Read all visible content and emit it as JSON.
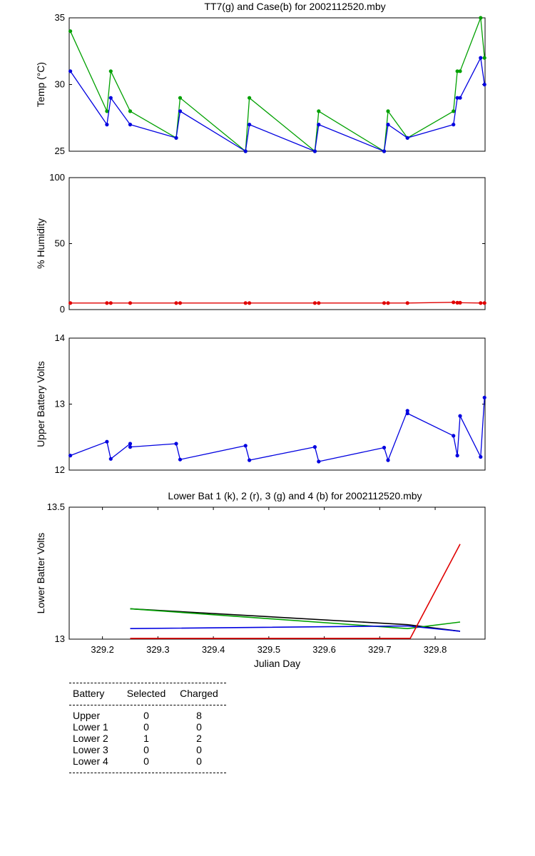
{
  "chart_data": [
    {
      "type": "line",
      "title": "TT7(g) and Case(b) for 2002112520.mby",
      "xlabel": "",
      "ylabel": "Temp  (°C)",
      "xlim": [
        329.14,
        329.89
      ],
      "ylim": [
        25,
        35
      ],
      "yticks": [
        25,
        30,
        35
      ],
      "grid": false,
      "series": [
        {
          "color": "#00a000",
          "x": [
            329.142,
            329.208,
            329.215,
            329.25,
            329.333,
            329.34,
            329.458,
            329.465,
            329.583,
            329.59,
            329.708,
            329.715,
            329.75,
            329.833,
            329.84,
            329.845,
            329.882,
            329.889
          ],
          "values": [
            34,
            28,
            31,
            28,
            26,
            29,
            25,
            29,
            25,
            28,
            25,
            28,
            26,
            28,
            31,
            31,
            35,
            32
          ]
        },
        {
          "color": "#0000e0",
          "x": [
            329.142,
            329.208,
            329.215,
            329.25,
            329.333,
            329.34,
            329.458,
            329.465,
            329.583,
            329.59,
            329.708,
            329.715,
            329.75,
            329.833,
            329.84,
            329.845,
            329.882,
            329.889
          ],
          "values": [
            31,
            27,
            29,
            27,
            26,
            28,
            25,
            27,
            25,
            27,
            25,
            27,
            26,
            27,
            29,
            29,
            32,
            30
          ]
        }
      ]
    },
    {
      "type": "line",
      "title": "",
      "xlabel": "",
      "ylabel": "% Humidity",
      "xlim": [
        329.14,
        329.89
      ],
      "ylim": [
        0,
        100
      ],
      "yticks": [
        0,
        50,
        100
      ],
      "grid": false,
      "series": [
        {
          "color": "#e00000",
          "x": [
            329.142,
            329.208,
            329.215,
            329.25,
            329.333,
            329.34,
            329.458,
            329.465,
            329.583,
            329.59,
            329.708,
            329.715,
            329.75,
            329.833,
            329.84,
            329.845,
            329.882,
            329.889
          ],
          "values": [
            5,
            5,
            5,
            5,
            5,
            5,
            5,
            5,
            5,
            5,
            5,
            5,
            5,
            5.5,
            5.2,
            5.2,
            5,
            5
          ]
        }
      ]
    },
    {
      "type": "line",
      "title": "",
      "xlabel": "",
      "ylabel": "Upper Battery Volts",
      "xlim": [
        329.14,
        329.89
      ],
      "ylim": [
        12,
        14
      ],
      "yticks": [
        12,
        13,
        14
      ],
      "grid": false,
      "series": [
        {
          "color": "#0000e0",
          "x": [
            329.142,
            329.208,
            329.215,
            329.25,
            329.25,
            329.333,
            329.34,
            329.458,
            329.465,
            329.583,
            329.59,
            329.708,
            329.715,
            329.75,
            329.75,
            329.833,
            329.84,
            329.845,
            329.882,
            329.889
          ],
          "values": [
            12.22,
            12.43,
            12.17,
            12.4,
            12.35,
            12.4,
            12.16,
            12.37,
            12.15,
            12.35,
            12.13,
            12.34,
            12.15,
            12.9,
            12.86,
            12.52,
            12.22,
            12.82,
            12.2,
            13.1
          ]
        }
      ]
    },
    {
      "type": "line",
      "title": "Lower Bat 1 (k), 2 (r), 3 (g) and 4 (b) for 2002112520.mby",
      "xlabel": "Julian Day",
      "ylabel": "Lower Batter Volts",
      "xlim": [
        329.14,
        329.89
      ],
      "ylim": [
        13,
        13.5
      ],
      "yticks": [
        13,
        13.5
      ],
      "xticks": [
        329.2,
        329.3,
        329.4,
        329.5,
        329.6,
        329.7,
        329.8
      ],
      "xticklabels": [
        "329.2",
        "329.3",
        "329.4",
        "329.5",
        "329.6",
        "329.7",
        "329.8"
      ],
      "grid": false,
      "series": [
        {
          "color": "#000000",
          "x": [
            329.25,
            329.75,
            329.845
          ],
          "values": [
            13.115,
            13.055,
            13.03
          ]
        },
        {
          "color": "#00a000",
          "x": [
            329.25,
            329.75,
            329.845
          ],
          "values": [
            13.115,
            13.04,
            13.065
          ]
        },
        {
          "color": "#0000e0",
          "x": [
            329.25,
            329.75,
            329.845
          ],
          "values": [
            13.04,
            13.05,
            13.03
          ]
        },
        {
          "color": "#e00000",
          "x": [
            329.25,
            329.755,
            329.845
          ],
          "values": [
            13.003,
            13.003,
            13.36
          ]
        }
      ]
    }
  ],
  "summary": {
    "headers": [
      "Battery",
      "Selected",
      "Charged"
    ],
    "rows": [
      {
        "battery": "Upper",
        "selected": "0",
        "charged": "8"
      },
      {
        "battery": "Lower 1",
        "selected": "0",
        "charged": "0"
      },
      {
        "battery": "Lower 2",
        "selected": "1",
        "charged": "2"
      },
      {
        "battery": "Lower 3",
        "selected": "0",
        "charged": "0"
      },
      {
        "battery": "Lower 4",
        "selected": "0",
        "charged": "0"
      }
    ]
  }
}
